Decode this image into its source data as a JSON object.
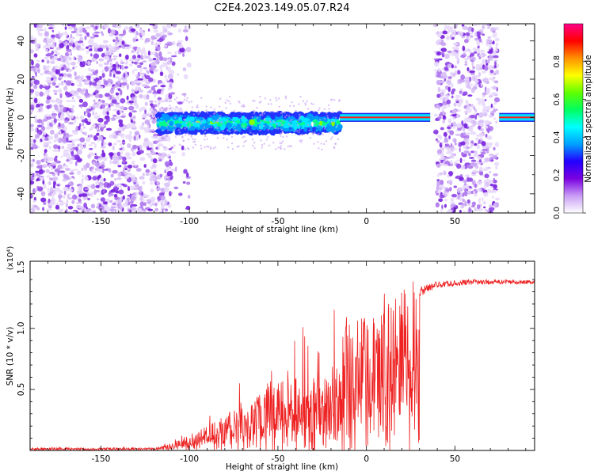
{
  "title": "C2E4.2023.149.05.07.R24",
  "chart_data": [
    {
      "type": "heatmap",
      "xlabel": "Height of straight line (km)",
      "ylabel": "Frequency (Hz)",
      "xlim": [
        -190,
        95
      ],
      "ylim": [
        -50,
        49
      ],
      "x_ticks": [
        "-150",
        "-100",
        "-50",
        "0",
        "50"
      ],
      "y_ticks": [
        "-40",
        "-20",
        "0",
        "20",
        "40"
      ],
      "x_tick_values": [
        -150,
        -100,
        -50,
        0,
        50
      ],
      "y_tick_values": [
        -40,
        -20,
        0,
        20,
        40
      ],
      "colorbar": {
        "label": "Normalized spectral amplitude",
        "range": [
          0,
          1
        ],
        "ticks": [
          "0.0",
          "0.2",
          "0.4",
          "0.6",
          "0.8"
        ],
        "tick_values": [
          0,
          0.2,
          0.4,
          0.6,
          0.8
        ],
        "colormap": [
          "#ffffff",
          "#c99cf5",
          "#7a00e0",
          "#2200ff",
          "#00a0ff",
          "#00ffff",
          "#00ff60",
          "#60ff00",
          "#ffff00",
          "#ff9000",
          "#ff0000",
          "#ff0088"
        ]
      },
      "regions": [
        {
          "x": [
            -190,
            -110
          ],
          "kind": "noise",
          "freq": [
            -50,
            49
          ]
        },
        {
          "x": [
            -110,
            -100
          ],
          "kind": "sparse-noise",
          "freq": [
            -50,
            49
          ]
        },
        {
          "x": [
            -118,
            -15
          ],
          "kind": "signal",
          "center_hz": -3,
          "width_hz": 5
        },
        {
          "x": [
            -15,
            36
          ],
          "kind": "line",
          "center_hz": 0,
          "width_hz": 1.5
        },
        {
          "x": [
            39,
            74
          ],
          "kind": "noise",
          "freq": [
            -50,
            49
          ]
        },
        {
          "x": [
            75,
            95
          ],
          "kind": "line",
          "center_hz": 0,
          "width_hz": 1.5
        }
      ]
    },
    {
      "type": "line",
      "xlabel": "Height of straight line (km)",
      "ylabel": "SNR (10 * v/v)",
      "y_multiplier": "(x10⁴)",
      "xlim": [
        -190,
        95
      ],
      "ylim": [
        0,
        1.55
      ],
      "x_ticks": [
        "-150",
        "-100",
        "-50",
        "0",
        "50"
      ],
      "y_ticks": [
        "0.5",
        "1.0",
        "1.5"
      ],
      "x_tick_values": [
        -150,
        -100,
        -50,
        0,
        50
      ],
      "y_tick_values": [
        0.5,
        1.0,
        1.5
      ],
      "color": "#ee2222",
      "envelope": [
        {
          "x": -190,
          "y": 0.02
        },
        {
          "x": -120,
          "y": 0.02
        },
        {
          "x": -110,
          "y": 0.05
        },
        {
          "x": -100,
          "y": 0.12
        },
        {
          "x": -85,
          "y": 0.22
        },
        {
          "x": -70,
          "y": 0.35
        },
        {
          "x": -55,
          "y": 0.48
        },
        {
          "x": -40,
          "y": 0.55
        },
        {
          "x": -25,
          "y": 0.6
        },
        {
          "x": -15,
          "y": 0.68
        },
        {
          "x": -12,
          "y": 1.0
        },
        {
          "x": 0,
          "y": 1.05
        },
        {
          "x": 10,
          "y": 1.05
        },
        {
          "x": 20,
          "y": 1.22
        },
        {
          "x": 30,
          "y": 1.3
        },
        {
          "x": 40,
          "y": 1.36
        },
        {
          "x": 60,
          "y": 1.38
        },
        {
          "x": 95,
          "y": 1.38
        }
      ],
      "noise_scale": [
        {
          "x": -190,
          "s": 0.01
        },
        {
          "x": -115,
          "s": 0.02
        },
        {
          "x": -100,
          "s": 0.1
        },
        {
          "x": -60,
          "s": 0.35
        },
        {
          "x": -20,
          "s": 0.6
        },
        {
          "x": -12,
          "s": 0.5
        },
        {
          "x": 10,
          "s": 0.25
        },
        {
          "x": 25,
          "s": 0.1
        },
        {
          "x": 40,
          "s": 0.05
        },
        {
          "x": 95,
          "s": 0.03
        }
      ]
    }
  ]
}
